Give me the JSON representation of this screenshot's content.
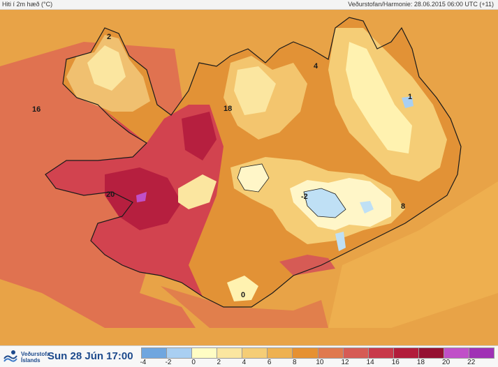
{
  "header": {
    "title": "Hiti í 2m hæð (°C)",
    "source": "Veðurstofan/Harmonie: 28.06.2015 06:00 UTC (+11)"
  },
  "footer": {
    "logo_line1": "Veðurstofa",
    "logo_line2": "Íslands",
    "datetime": "Sun 28 Jún 17:00"
  },
  "legend": {
    "ticks": [
      "-4",
      "-2",
      "0",
      "2",
      "4",
      "6",
      "8",
      "10",
      "12",
      "14",
      "16",
      "18",
      "20",
      "22"
    ],
    "colors": [
      "#6fa6df",
      "#a9cff2",
      "#fffdc4",
      "#fbe6a0",
      "#f5cd76",
      "#eeb151",
      "#e69132",
      "#e0794e",
      "#d65b55",
      "#c8394a",
      "#b21d3b",
      "#951032",
      "#c050c8",
      "#a031b5"
    ]
  },
  "map_labels": [
    "2",
    "16",
    "20",
    "18",
    "4",
    "1",
    "-2",
    "8",
    "0"
  ],
  "map_colors": {
    "sea": "#e8a347",
    "west_warm_sea": "#e07250",
    "land_base": "#e29236",
    "warm_west": "#d2434f",
    "hot_core": "#b61f3f",
    "highland": "#f4d070",
    "glacier": "#bfe0f5",
    "mountain_peaks": "#fff2b0"
  }
}
